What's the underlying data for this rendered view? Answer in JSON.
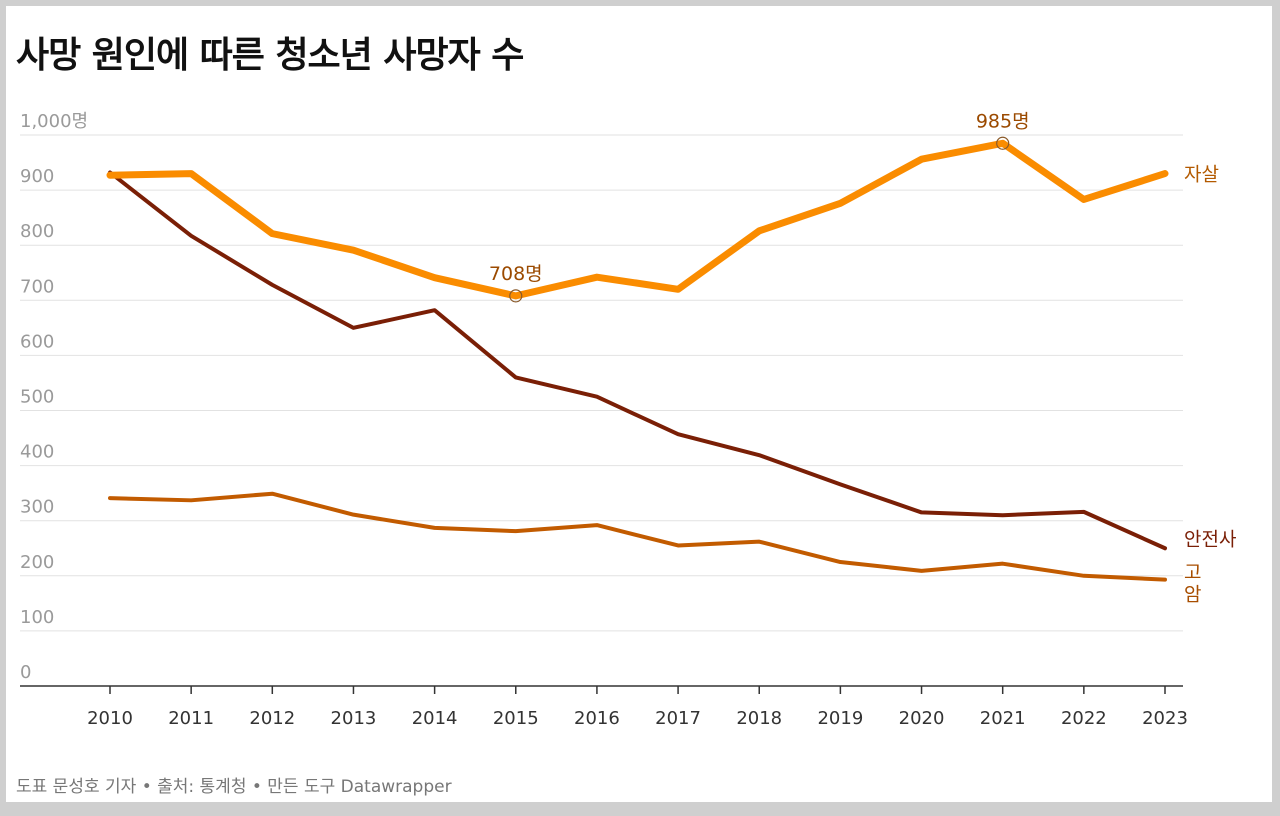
{
  "header": {
    "title": "사망 원인에 따른 청소년 사망자 수"
  },
  "footer": {
    "credit": "도표 문성호 기자 • 출처: 통계청 • 만든 도구 Datawrapper"
  },
  "chart_data": {
    "type": "line",
    "title": "사망 원인에 따른 청소년 사망자 수",
    "x": [
      2010,
      2011,
      2012,
      2013,
      2014,
      2015,
      2016,
      2017,
      2018,
      2019,
      2020,
      2021,
      2022,
      2023
    ],
    "x_tick_labels": [
      "2010",
      "2011",
      "2012",
      "2013",
      "2014",
      "2015",
      "2016",
      "2017",
      "2018",
      "2019",
      "2020",
      "2021",
      "2022",
      "2023"
    ],
    "ylim": [
      0,
      1000
    ],
    "y_ticks": [
      0,
      100,
      200,
      300,
      400,
      500,
      600,
      700,
      800,
      900,
      1000
    ],
    "y_tick_labels": [
      "0",
      "100",
      "200",
      "300",
      "400",
      "500",
      "600",
      "700",
      "800",
      "900",
      "1,000명"
    ],
    "grid": true,
    "series": [
      {
        "name": "자살",
        "color": "#fa8c00",
        "values": [
          927,
          930,
          821,
          791,
          741,
          708,
          742,
          720,
          826,
          876,
          956,
          985,
          883,
          930
        ]
      },
      {
        "name": "안전사",
        "color": "#7a1f06",
        "values": [
          932,
          817,
          728,
          650,
          682,
          560,
          525,
          457,
          419,
          366,
          315,
          310,
          316,
          250
        ]
      },
      {
        "name": "고",
        "label_second_line": "암",
        "color": "#c25b00",
        "values": [
          341,
          337,
          349,
          311,
          287,
          281,
          292,
          255,
          262,
          225,
          209,
          222,
          200,
          193
        ]
      }
    ],
    "annotations": [
      {
        "series": 0,
        "x": 2015,
        "value": 708,
        "label": "708명",
        "color": "#9b4a00"
      },
      {
        "series": 0,
        "x": 2021,
        "value": 985,
        "label": "985명",
        "color": "#9b4a00"
      }
    ]
  }
}
